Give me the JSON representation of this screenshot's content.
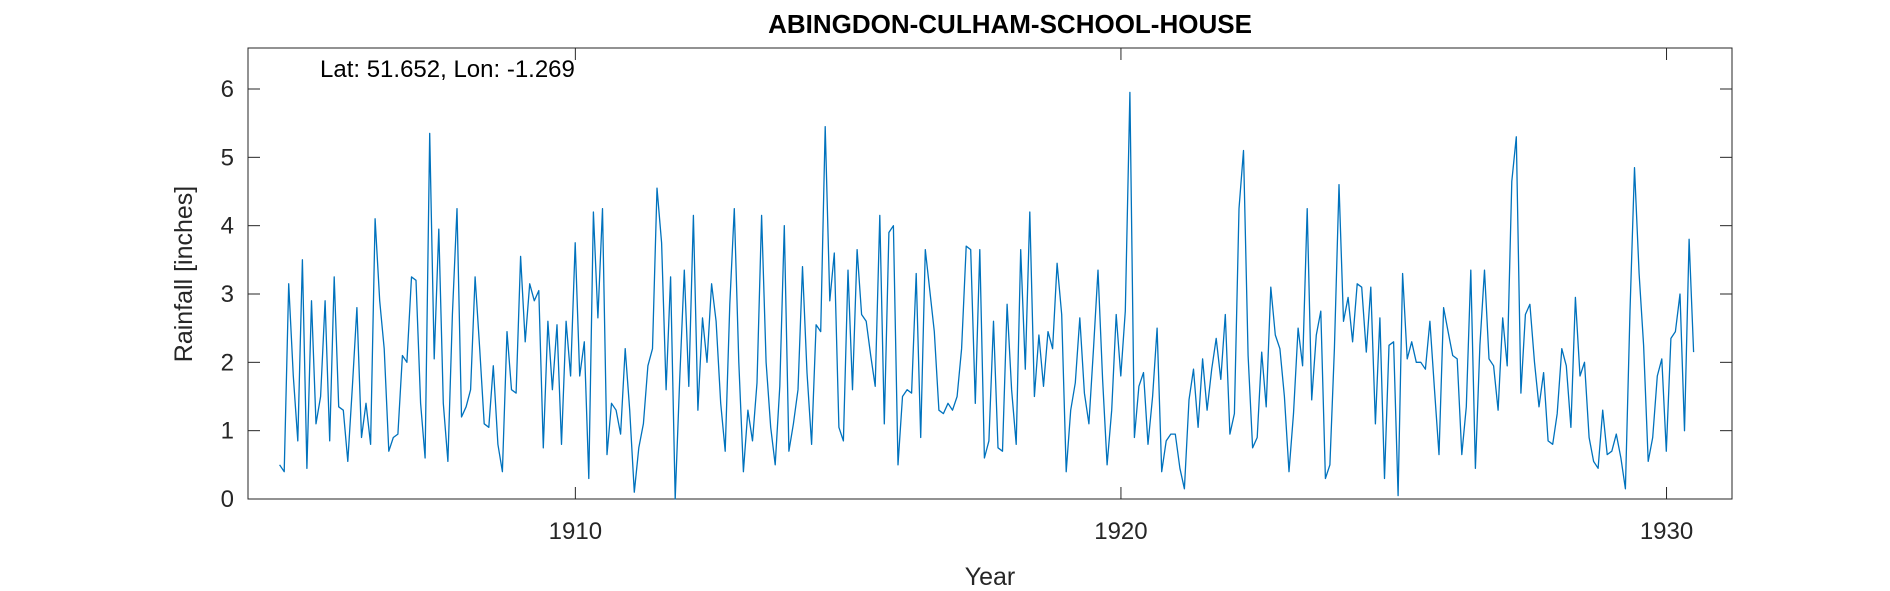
{
  "chart_data": {
    "type": "line",
    "title": "ABINGDON-CULHAM-SCHOOL-HOUSE",
    "annotation": "Lat: 51.652, Lon: -1.269",
    "xlabel": "Year",
    "ylabel": "Rainfall [inches]",
    "xlim": [
      1904.0,
      1931.2
    ],
    "ylim": [
      0,
      6.6
    ],
    "x_ticks": [
      1910,
      1920,
      1930
    ],
    "y_ticks": [
      0,
      1,
      2,
      3,
      4,
      5,
      6
    ],
    "grid": false,
    "box": true,
    "series": [
      {
        "color": "#0072BD",
        "x_start": 1904.58,
        "x_step": 0.0833333,
        "values": [
          0.5,
          0.4,
          3.15,
          1.8,
          0.85,
          3.5,
          0.45,
          2.9,
          1.1,
          1.5,
          2.9,
          0.85,
          3.25,
          1.35,
          1.3,
          0.55,
          1.65,
          2.8,
          0.9,
          1.4,
          0.8,
          4.1,
          2.9,
          2.2,
          0.7,
          0.9,
          0.95,
          2.1,
          2.0,
          3.25,
          3.2,
          1.4,
          0.6,
          5.35,
          2.05,
          3.95,
          1.4,
          0.55,
          2.7,
          4.25,
          1.2,
          1.35,
          1.6,
          3.25,
          2.2,
          1.1,
          1.05,
          1.95,
          0.8,
          0.4,
          2.45,
          1.6,
          1.55,
          3.55,
          2.3,
          3.15,
          2.9,
          3.05,
          0.75,
          2.6,
          1.6,
          2.55,
          0.8,
          2.6,
          1.8,
          3.75,
          1.8,
          2.3,
          0.3,
          4.2,
          2.65,
          4.25,
          0.65,
          1.4,
          1.3,
          0.95,
          2.2,
          1.3,
          0.1,
          0.75,
          1.1,
          1.95,
          2.2,
          4.55,
          3.75,
          1.6,
          3.25,
          0.0,
          1.75,
          3.35,
          1.65,
          4.15,
          1.3,
          2.65,
          2.0,
          3.15,
          2.6,
          1.4,
          0.7,
          2.85,
          4.25,
          2.0,
          0.4,
          1.3,
          0.85,
          1.7,
          4.15,
          2.0,
          1.05,
          0.5,
          1.65,
          4.0,
          0.7,
          1.1,
          1.6,
          3.4,
          1.85,
          0.8,
          2.55,
          2.45,
          5.45,
          2.9,
          3.6,
          1.05,
          0.85,
          3.35,
          1.6,
          3.65,
          2.7,
          2.6,
          2.1,
          1.65,
          4.15,
          1.1,
          3.9,
          4.0,
          0.5,
          1.5,
          1.6,
          1.55,
          3.3,
          0.9,
          3.65,
          3.05,
          2.45,
          1.3,
          1.25,
          1.4,
          1.3,
          1.5,
          2.2,
          3.7,
          3.65,
          1.4,
          3.65,
          0.6,
          0.85,
          2.6,
          0.75,
          0.7,
          2.85,
          1.6,
          0.8,
          3.65,
          1.9,
          4.2,
          1.5,
          2.4,
          1.65,
          2.45,
          2.2,
          3.45,
          2.7,
          0.4,
          1.3,
          1.7,
          2.65,
          1.55,
          1.1,
          2.2,
          3.35,
          1.75,
          0.5,
          1.3,
          2.7,
          1.8,
          2.75,
          5.95,
          0.9,
          1.65,
          1.85,
          0.8,
          1.5,
          2.5,
          0.4,
          0.85,
          0.95,
          0.95,
          0.45,
          0.15,
          1.45,
          1.9,
          1.05,
          2.05,
          1.3,
          1.9,
          2.35,
          1.75,
          2.7,
          0.95,
          1.25,
          4.25,
          5.1,
          2.1,
          0.75,
          0.9,
          2.15,
          1.35,
          3.1,
          2.4,
          2.2,
          1.5,
          0.4,
          1.25,
          2.5,
          1.95,
          4.25,
          1.45,
          2.4,
          2.75,
          0.3,
          0.5,
          2.2,
          4.6,
          2.6,
          2.95,
          2.3,
          3.15,
          3.1,
          2.15,
          3.1,
          1.1,
          2.65,
          0.3,
          2.25,
          2.3,
          0.05,
          3.3,
          2.05,
          2.3,
          2.0,
          2.0,
          1.9,
          2.6,
          1.6,
          0.65,
          2.8,
          2.45,
          2.1,
          2.05,
          0.65,
          1.35,
          3.35,
          0.45,
          2.25,
          3.35,
          2.05,
          1.95,
          1.3,
          2.65,
          1.95,
          4.65,
          5.3,
          1.55,
          2.7,
          2.85,
          2.0,
          1.35,
          1.85,
          0.85,
          0.8,
          1.25,
          2.2,
          1.95,
          1.05,
          2.95,
          1.8,
          2.0,
          0.9,
          0.55,
          0.45,
          1.3,
          0.65,
          0.7,
          0.95,
          0.6,
          0.15,
          2.75,
          4.85,
          3.3,
          2.25,
          0.55,
          0.9,
          1.8,
          2.05,
          0.7,
          2.35,
          2.45,
          3.0,
          1.0,
          3.8,
          2.15
        ]
      }
    ]
  }
}
